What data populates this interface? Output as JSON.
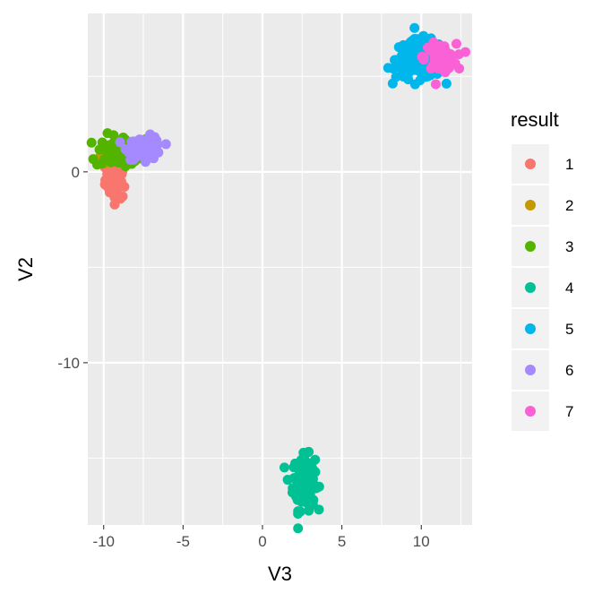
{
  "chart_data": {
    "type": "scatter",
    "xlabel": "V3",
    "ylabel": "V2",
    "xlim": [
      -11,
      13.2
    ],
    "ylim": [
      -18.5,
      8.3
    ],
    "x_ticks": [
      -10,
      -5,
      0,
      5,
      10
    ],
    "x_tick_labels": [
      "-10",
      "-5",
      "0",
      "5",
      "10"
    ],
    "y_ticks": [
      0,
      -10
    ],
    "y_tick_labels": [
      "0",
      "-10"
    ],
    "grid": true,
    "legend": {
      "title": "result",
      "position": "right"
    },
    "series": [
      {
        "name": "1",
        "color": "#F8766D",
        "cluster": {
          "cx": -9.2,
          "cy": -0.4,
          "sx": 0.35,
          "sy": 0.5,
          "n": 55
        }
      },
      {
        "name": "2",
        "color": "#C49A00",
        "cluster": {
          "cx": -9.9,
          "cy": 0.65,
          "sx": 0.35,
          "sy": 0.12,
          "n": 25
        }
      },
      {
        "name": "3",
        "color": "#53B400",
        "cluster": {
          "cx": -8.7,
          "cy": 1.05,
          "sx": 0.9,
          "sy": 0.45,
          "n": 80
        }
      },
      {
        "name": "4",
        "color": "#00C094",
        "cluster": {
          "cx": 2.6,
          "cy": -16.3,
          "sx": 0.35,
          "sy": 0.7,
          "n": 110
        }
      },
      {
        "name": "5",
        "color": "#00B6EB",
        "cluster": {
          "cx": 9.9,
          "cy": 5.9,
          "sx": 0.75,
          "sy": 0.5,
          "n": 180
        }
      },
      {
        "name": "6",
        "color": "#A58AFF",
        "cluster": {
          "cx": -7.4,
          "cy": 1.25,
          "sx": 0.55,
          "sy": 0.3,
          "n": 70
        }
      },
      {
        "name": "7",
        "color": "#FB61D7",
        "cluster": {
          "cx": 11.2,
          "cy": 6.0,
          "sx": 0.5,
          "sy": 0.35,
          "n": 80
        }
      }
    ]
  }
}
